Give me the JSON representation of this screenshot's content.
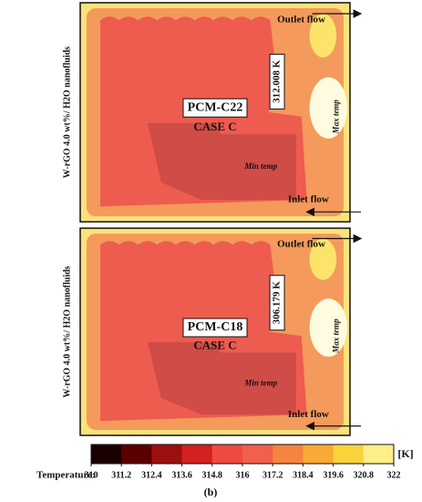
{
  "panels": [
    {
      "side_label": "W-rGO 4.0 wt%/ H2O nanofluids",
      "material": "PCM-C22",
      "case": "CASE C",
      "max_value": "312.008 K",
      "outlet": "Outlet flow",
      "inlet": "Inlet flow",
      "max_label": "Max temp",
      "min_label": "Min temp"
    },
    {
      "side_label": "W-rGO 4.0 wt%/ H2O nanofluids",
      "material": "PCM-C18",
      "case": "CASE C",
      "max_value": "306.179 K",
      "outlet": "Outlet flow",
      "inlet": "Inlet flow",
      "max_label": "Max temp",
      "min_label": "Min temp"
    }
  ],
  "colorbar": {
    "label": "Temperature:",
    "unit": "[K]",
    "ticks": [
      310,
      311.2,
      312.4,
      313.6,
      314.8,
      316,
      317.2,
      318.4,
      319.6,
      320.8,
      322
    ]
  },
  "caption": "(b)"
}
